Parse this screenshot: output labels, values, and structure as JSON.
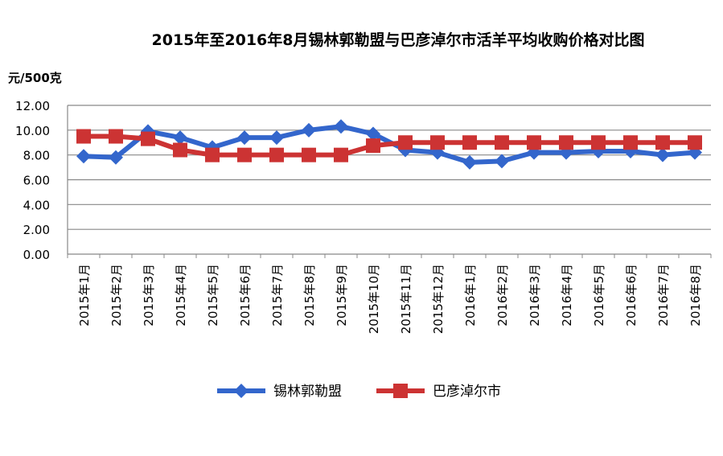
{
  "chart_data": {
    "type": "line",
    "title": "2015年至2016年8月锡林郭勒盟与巴彦淖尔市活羊平均收购价格对比图",
    "ylabel": "元/500克",
    "ylim": [
      0,
      12
    ],
    "yticks": [
      "0.00",
      "2.00",
      "4.00",
      "6.00",
      "8.00",
      "10.00",
      "12.00"
    ],
    "grid": true,
    "legend": "bottom",
    "categories": [
      "2015年1月",
      "2015年2月",
      "2015年3月",
      "2015年4月",
      "2015年5月",
      "2015年6月",
      "2015年7月",
      "2015年8月",
      "2015年9月",
      "2015年10月",
      "2015年11月",
      "2015年12月",
      "2016年1月",
      "2016年2月",
      "2016年3月",
      "2016年4月",
      "2016年5月",
      "2016年6月",
      "2016年7月",
      "2016年8月"
    ],
    "series": [
      {
        "name": "锡林郭勒盟",
        "color": "#3366CC",
        "marker": "diamond",
        "values": [
          7.9,
          7.8,
          9.9,
          9.4,
          8.6,
          9.4,
          9.4,
          10.0,
          10.3,
          9.7,
          8.4,
          8.2,
          7.4,
          7.5,
          8.2,
          8.2,
          8.3,
          8.3,
          8.0,
          8.2
        ]
      },
      {
        "name": "巴彦淖尔市",
        "color": "#CC3333",
        "marker": "square",
        "values": [
          9.5,
          9.5,
          9.3,
          8.4,
          8.0,
          8.0,
          8.0,
          8.0,
          8.0,
          8.75,
          9.0,
          9.0,
          9.0,
          9.0,
          9.0,
          9.0,
          9.0,
          9.0,
          9.0,
          9.0
        ]
      }
    ]
  }
}
